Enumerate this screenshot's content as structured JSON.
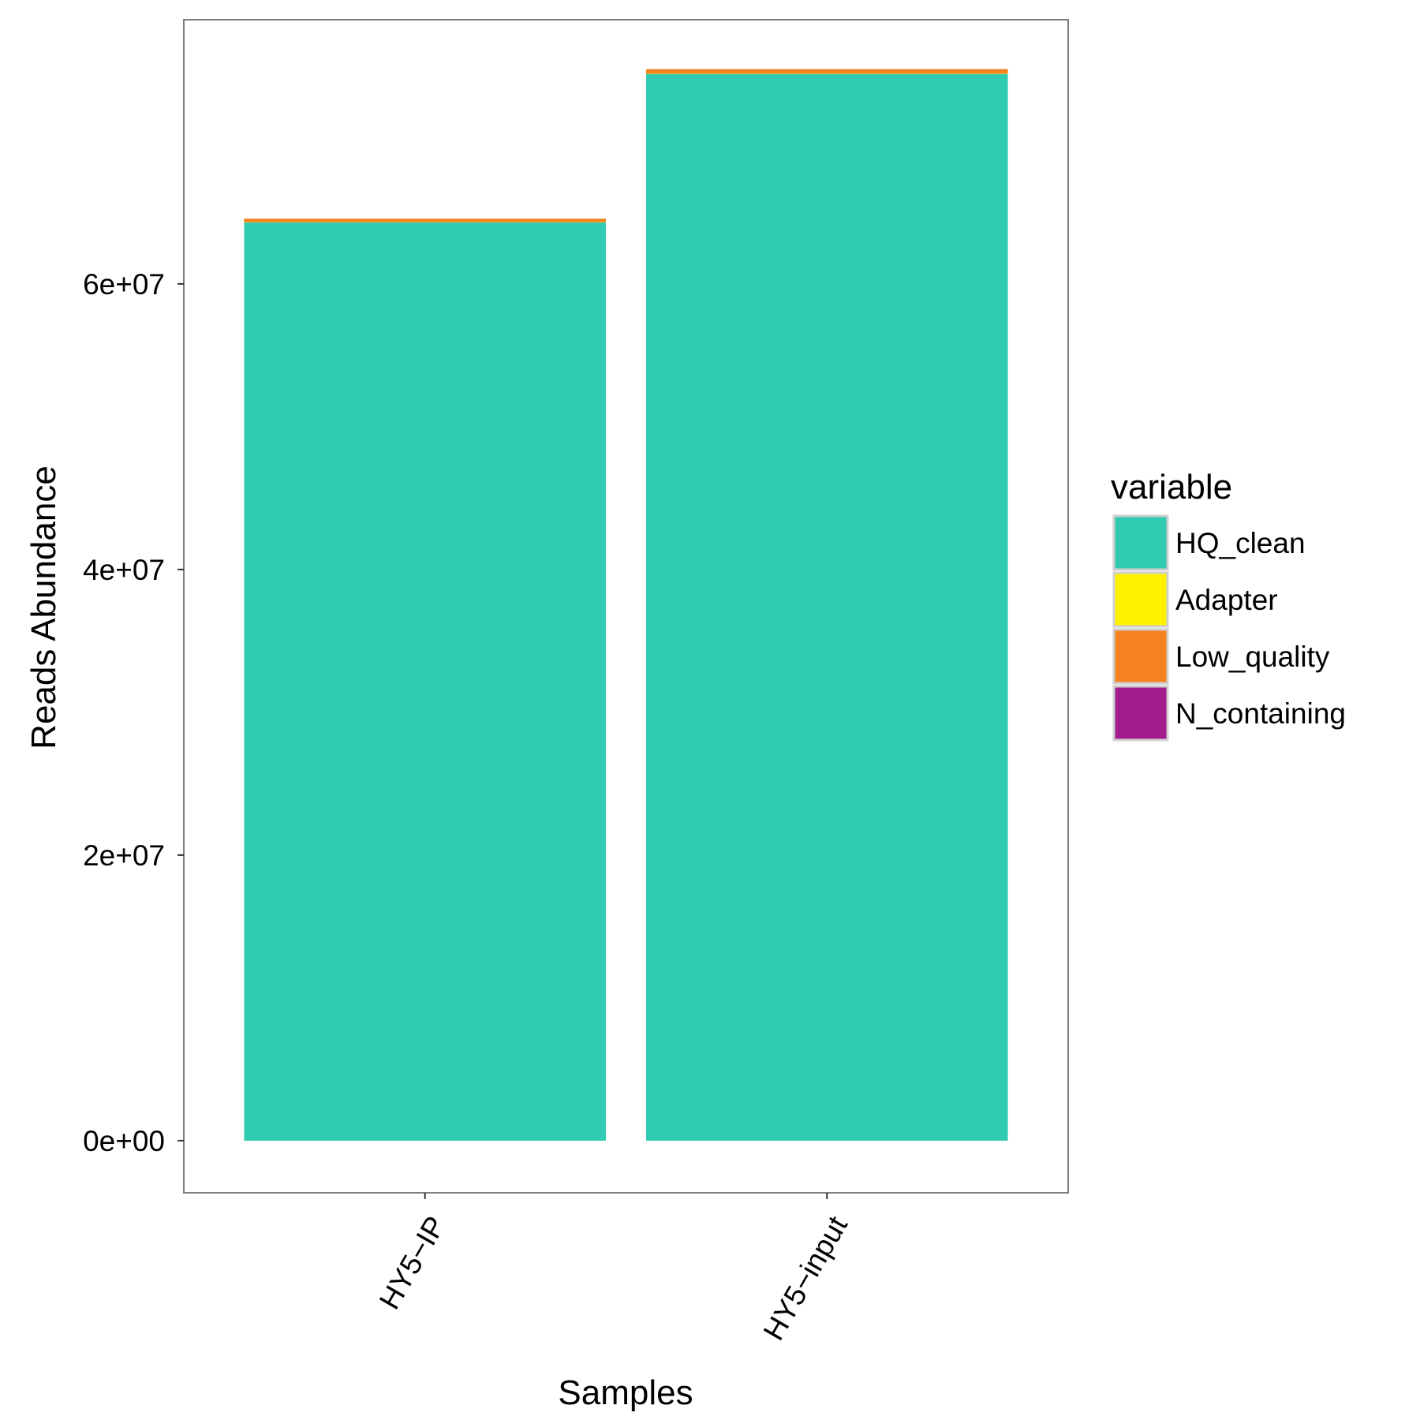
{
  "chart_data": {
    "type": "bar",
    "stacked": true,
    "xlabel": "Samples",
    "ylabel": "Reads Abundance",
    "categories": [
      "HY5−IP",
      "HY5−input"
    ],
    "ylim": [
      -3650000,
      78500000
    ],
    "yticks": [
      {
        "value": 0,
        "label": "0e+00"
      },
      {
        "value": 20000000,
        "label": "2e+07"
      },
      {
        "value": 40000000,
        "label": "4e+07"
      },
      {
        "value": 60000000,
        "label": "6e+07"
      }
    ],
    "series": [
      {
        "name": "HQ_clean",
        "color": "#31CBB2",
        "values": [
          64300000,
          74700000
        ]
      },
      {
        "name": "Adapter",
        "color": "#FFF000",
        "values": [
          20000,
          20000
        ]
      },
      {
        "name": "Low_quality",
        "color": "#F4821F",
        "values": [
          250000,
          320000
        ]
      },
      {
        "name": "N_containing",
        "color": "#A21C8D",
        "values": [
          2000,
          2000
        ]
      }
    ],
    "legend": {
      "title": "variable",
      "position": "right"
    },
    "grid": false
  }
}
